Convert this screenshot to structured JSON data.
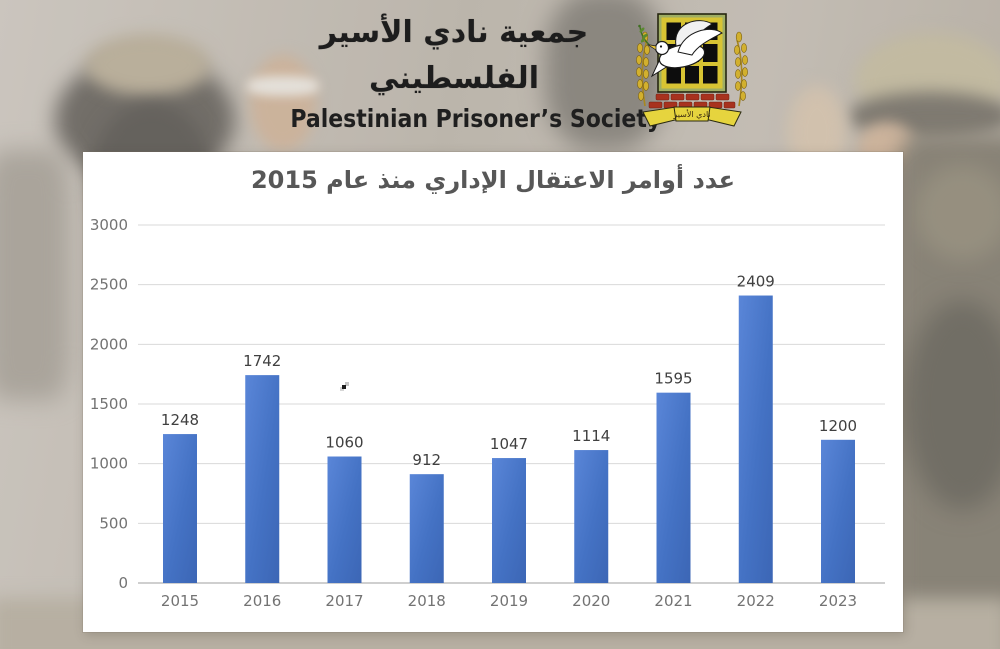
{
  "header": {
    "title_ar": "جمعية نادي الأسير الفلسطيني",
    "title_en": "Palestinian Prisoner’s Society",
    "logo": {
      "name": "palestinian-prisoners-society-emblem",
      "banner_text": "نادي الأسير"
    }
  },
  "chart_data": {
    "type": "bar",
    "title": "عدد أوامر الاعتقال الإداري منذ عام 2015",
    "categories": [
      "2015",
      "2016",
      "2017",
      "2018",
      "2019",
      "2020",
      "2021",
      "2022",
      "2023"
    ],
    "values": [
      1248,
      1742,
      1060,
      912,
      1047,
      1114,
      1595,
      2409,
      1200
    ],
    "xlabel": "",
    "ylabel": "",
    "ylim": [
      0,
      3000
    ],
    "yticks": [
      0,
      500,
      1000,
      1500,
      2000,
      2500,
      3000
    ],
    "grid": true,
    "legend": "none",
    "colors": {
      "bar": "#4472c4",
      "bar_gradient_light": "#5a86d8",
      "bar_gradient_dark": "#3c66b5",
      "gridline": "#d9d9d9",
      "axis_line": "#bfbfbf",
      "axis_text": "#737373",
      "value_text": "#404040",
      "title_text": "#575757"
    }
  }
}
